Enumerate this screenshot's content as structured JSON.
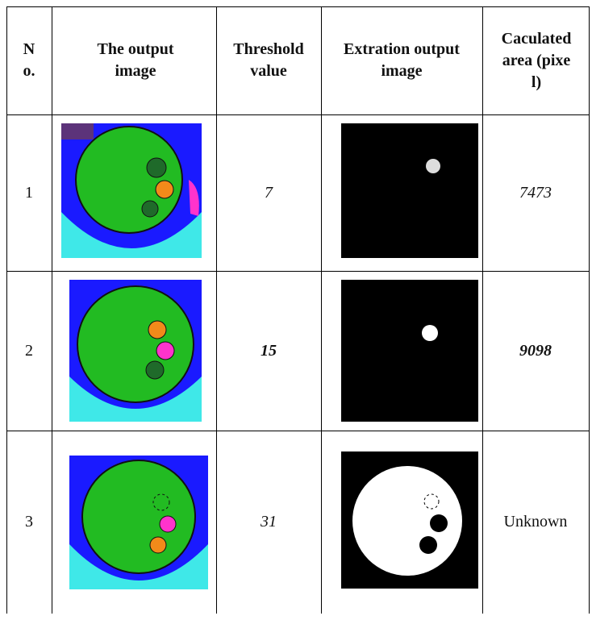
{
  "table": {
    "headers": [
      "No.",
      "The output image",
      "Threshold value",
      "Extration output image",
      "Caculated area (pixel)"
    ],
    "rows": [
      {
        "no": 1,
        "threshold": 7,
        "area": 7473
      },
      {
        "no": 2,
        "threshold": 15,
        "area": 9098
      },
      {
        "no": 3,
        "threshold": 31,
        "area": "Unknown"
      }
    ]
  }
}
